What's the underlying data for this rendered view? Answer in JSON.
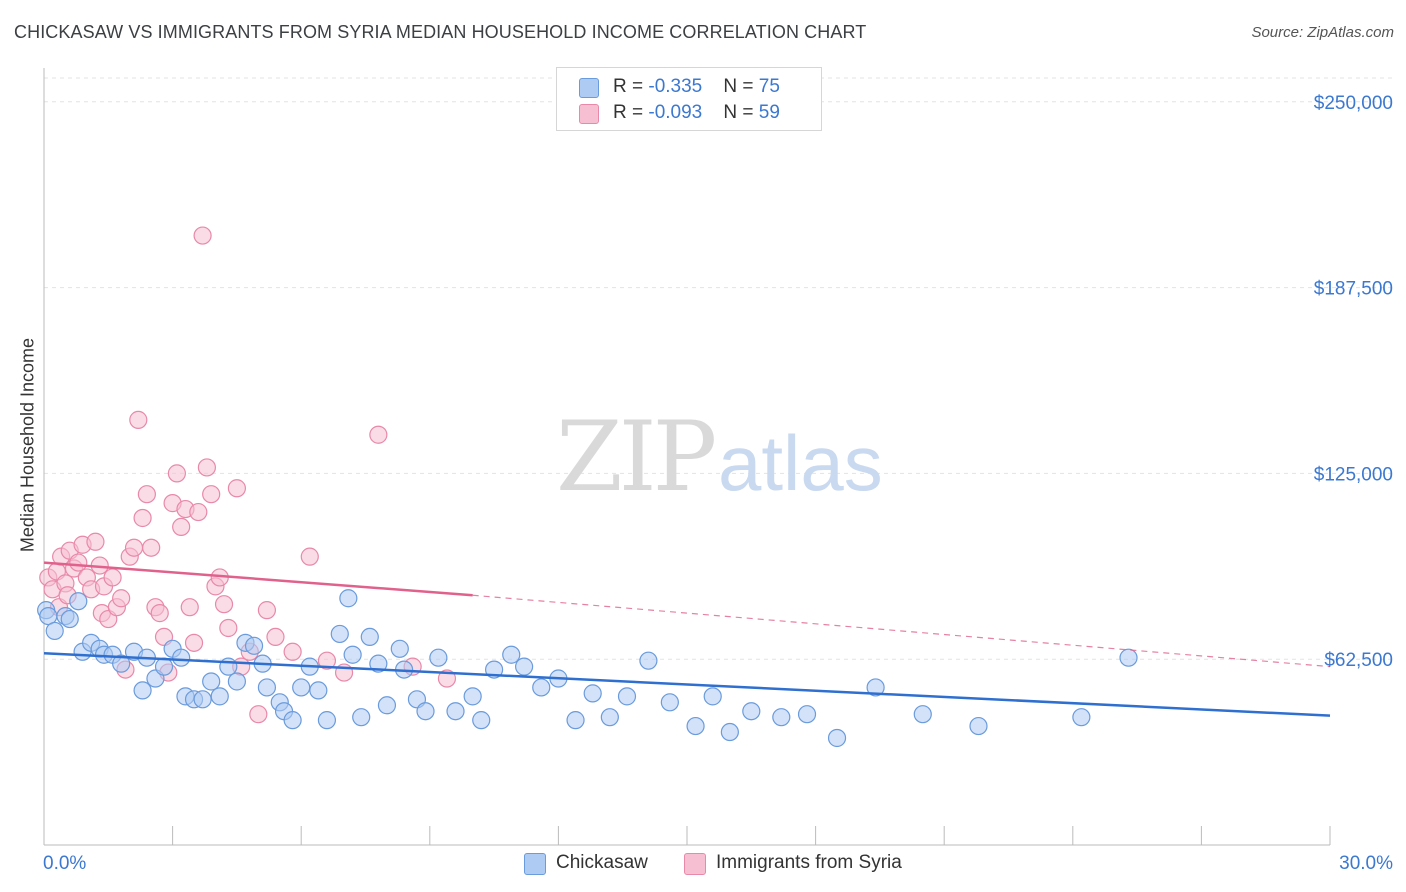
{
  "header": {
    "title": "CHICKASAW VS IMMIGRANTS FROM SYRIA MEDIAN HOUSEHOLD INCOME CORRELATION CHART",
    "source": "Source: ZipAtlas.com"
  },
  "watermark": {
    "zip": "ZIP",
    "atlas": "atlas"
  },
  "colors": {
    "chickasaw_fill": "#aecbf3",
    "chickasaw_stroke": "#6a9bdc",
    "chickasaw_line": "#2f6fcf",
    "syria_fill": "#f6bfd2",
    "syria_stroke": "#e889a9",
    "syria_line": "#e0628c",
    "axis_label": "#3b78d0",
    "grid": "#e3e3e3"
  },
  "legend": {
    "rows": [
      {
        "r_label": "R = ",
        "r_value": "-0.335",
        "n_label": "N = ",
        "n_value": "75"
      },
      {
        "r_label": "R = ",
        "r_value": "-0.093",
        "n_label": "N = ",
        "n_value": "59"
      }
    ]
  },
  "chart_data": {
    "type": "scatter",
    "title": "CHICKASAW VS IMMIGRANTS FROM SYRIA MEDIAN HOUSEHOLD INCOME CORRELATION CHART",
    "xlabel": "",
    "ylabel": "Median Household Income",
    "xlim": [
      0,
      30
    ],
    "ylim": [
      0,
      258000
    ],
    "x_tick_labels": [
      "0.0%",
      "30.0%"
    ],
    "y_ticks": [
      62500,
      125000,
      187500,
      250000
    ],
    "y_tick_labels": [
      "$62,500",
      "$125,000",
      "$187,500",
      "$250,000"
    ],
    "grid": true,
    "legend_placement": "top-center",
    "series": [
      {
        "name": "Chickasaw",
        "points": [
          [
            0.05,
            79000
          ],
          [
            0.1,
            77000
          ],
          [
            0.25,
            72000
          ],
          [
            0.5,
            77000
          ],
          [
            0.6,
            76000
          ],
          [
            0.8,
            82000
          ],
          [
            0.9,
            65000
          ],
          [
            1.1,
            68000
          ],
          [
            1.3,
            66000
          ],
          [
            1.4,
            64000
          ],
          [
            1.6,
            64000
          ],
          [
            1.8,
            61000
          ],
          [
            2.1,
            65000
          ],
          [
            2.3,
            52000
          ],
          [
            2.4,
            63000
          ],
          [
            2.6,
            56000
          ],
          [
            2.8,
            60000
          ],
          [
            3.0,
            66000
          ],
          [
            3.2,
            63000
          ],
          [
            3.3,
            50000
          ],
          [
            3.5,
            49000
          ],
          [
            3.7,
            49000
          ],
          [
            3.9,
            55000
          ],
          [
            4.1,
            50000
          ],
          [
            4.3,
            60000
          ],
          [
            4.5,
            55000
          ],
          [
            4.7,
            68000
          ],
          [
            4.9,
            67000
          ],
          [
            5.1,
            61000
          ],
          [
            5.2,
            53000
          ],
          [
            5.5,
            48000
          ],
          [
            5.6,
            45000
          ],
          [
            5.8,
            42000
          ],
          [
            6.0,
            53000
          ],
          [
            6.2,
            60000
          ],
          [
            6.4,
            52000
          ],
          [
            6.6,
            42000
          ],
          [
            6.9,
            71000
          ],
          [
            7.1,
            83000
          ],
          [
            7.2,
            64000
          ],
          [
            7.4,
            43000
          ],
          [
            7.6,
            70000
          ],
          [
            7.8,
            61000
          ],
          [
            8.0,
            47000
          ],
          [
            8.3,
            66000
          ],
          [
            8.4,
            59000
          ],
          [
            8.7,
            49000
          ],
          [
            8.9,
            45000
          ],
          [
            9.2,
            63000
          ],
          [
            9.6,
            45000
          ],
          [
            10.0,
            50000
          ],
          [
            10.2,
            42000
          ],
          [
            10.5,
            59000
          ],
          [
            10.9,
            64000
          ],
          [
            11.2,
            60000
          ],
          [
            11.6,
            53000
          ],
          [
            12.0,
            56000
          ],
          [
            12.4,
            42000
          ],
          [
            12.8,
            51000
          ],
          [
            13.2,
            43000
          ],
          [
            13.6,
            50000
          ],
          [
            14.1,
            62000
          ],
          [
            14.6,
            48000
          ],
          [
            15.2,
            40000
          ],
          [
            15.6,
            50000
          ],
          [
            16.0,
            38000
          ],
          [
            16.5,
            45000
          ],
          [
            17.2,
            43000
          ],
          [
            17.8,
            44000
          ],
          [
            18.5,
            36000
          ],
          [
            19.4,
            53000
          ],
          [
            20.5,
            44000
          ],
          [
            21.8,
            40000
          ],
          [
            24.2,
            43000
          ],
          [
            25.3,
            63000
          ]
        ],
        "trend": {
          "x": [
            0,
            30
          ],
          "y": [
            64500,
            43500
          ]
        }
      },
      {
        "name": "Immigrants from Syria",
        "points": [
          [
            0.1,
            90000
          ],
          [
            0.2,
            86000
          ],
          [
            0.3,
            92000
          ],
          [
            0.35,
            80000
          ],
          [
            0.4,
            97000
          ],
          [
            0.5,
            88000
          ],
          [
            0.55,
            84000
          ],
          [
            0.6,
            99000
          ],
          [
            0.7,
            93000
          ],
          [
            0.8,
            95000
          ],
          [
            0.9,
            101000
          ],
          [
            1.0,
            90000
          ],
          [
            1.1,
            86000
          ],
          [
            1.2,
            102000
          ],
          [
            1.3,
            94000
          ],
          [
            1.35,
            78000
          ],
          [
            1.4,
            87000
          ],
          [
            1.5,
            76000
          ],
          [
            1.6,
            90000
          ],
          [
            1.7,
            80000
          ],
          [
            1.8,
            83000
          ],
          [
            1.9,
            59000
          ],
          [
            2.0,
            97000
          ],
          [
            2.1,
            100000
          ],
          [
            2.2,
            143000
          ],
          [
            2.3,
            110000
          ],
          [
            2.4,
            118000
          ],
          [
            2.5,
            100000
          ],
          [
            2.6,
            80000
          ],
          [
            2.7,
            78000
          ],
          [
            2.8,
            70000
          ],
          [
            2.9,
            58000
          ],
          [
            3.0,
            115000
          ],
          [
            3.1,
            125000
          ],
          [
            3.2,
            107000
          ],
          [
            3.3,
            113000
          ],
          [
            3.4,
            80000
          ],
          [
            3.5,
            68000
          ],
          [
            3.6,
            112000
          ],
          [
            3.7,
            205000
          ],
          [
            3.8,
            127000
          ],
          [
            3.9,
            118000
          ],
          [
            4.0,
            87000
          ],
          [
            4.1,
            90000
          ],
          [
            4.2,
            81000
          ],
          [
            4.3,
            73000
          ],
          [
            4.5,
            120000
          ],
          [
            4.6,
            60000
          ],
          [
            4.8,
            65000
          ],
          [
            5.0,
            44000
          ],
          [
            5.2,
            79000
          ],
          [
            5.4,
            70000
          ],
          [
            5.8,
            65000
          ],
          [
            6.2,
            97000
          ],
          [
            6.6,
            62000
          ],
          [
            7.0,
            58000
          ],
          [
            7.8,
            138000
          ],
          [
            8.6,
            60000
          ],
          [
            9.4,
            56000
          ]
        ],
        "trend_solid": {
          "x": [
            0,
            10.0
          ],
          "y": [
            95000,
            84000
          ]
        },
        "trend_dashed": {
          "x": [
            10.0,
            30
          ],
          "y": [
            84000,
            60000
          ]
        }
      }
    ]
  }
}
